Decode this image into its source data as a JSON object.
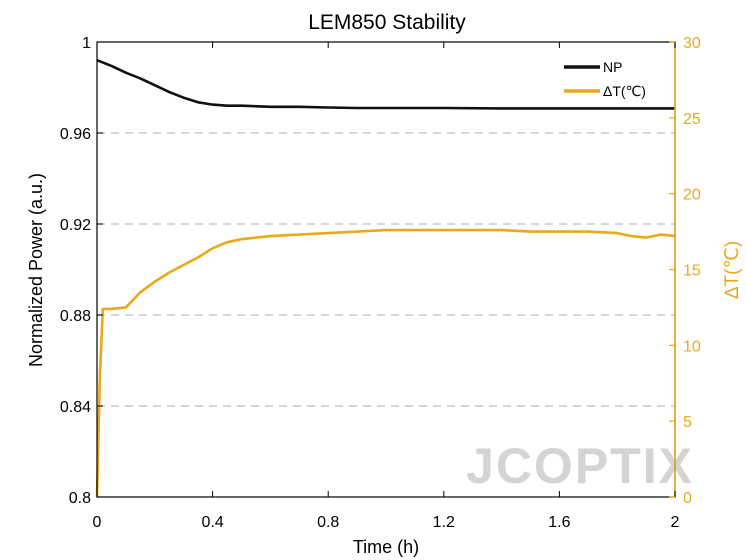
{
  "chart_data": {
    "type": "line",
    "title": "LEM850 Stability",
    "xlabel": "Time (h)",
    "ylabel": "Normalized Power (a.u.)",
    "ylabel_right": "ΔT(℃)",
    "xlim": [
      0,
      2
    ],
    "ylim": [
      0.8,
      1.0
    ],
    "ylim_right": [
      0,
      30
    ],
    "x_ticks": [
      "0",
      "0.4",
      "0.8",
      "1.2",
      "1.6",
      "2"
    ],
    "x_tick_values": [
      0,
      0.4,
      0.8,
      1.2,
      1.6,
      2
    ],
    "y_ticks": [
      "0.8",
      "0.84",
      "0.88",
      "0.92",
      "0.96",
      "1"
    ],
    "y_tick_values": [
      0.8,
      0.84,
      0.88,
      0.92,
      0.96,
      1.0
    ],
    "y_ticks_right": [
      "0",
      "5",
      "10",
      "15",
      "20",
      "25",
      "30"
    ],
    "y_tick_values_right": [
      0,
      5,
      10,
      15,
      20,
      25,
      30
    ],
    "grid": "dashed horizontal at 0.84, 0.88, 0.92, 0.96",
    "legend_position": "top-right",
    "watermark": "JCOPTIX",
    "colors": {
      "np": "#111111",
      "dt": "#e8a91c",
      "grid": "#c8c8c8"
    },
    "series": [
      {
        "name": "NP",
        "axis": "left",
        "x": [
          0,
          0.05,
          0.1,
          0.15,
          0.2,
          0.25,
          0.3,
          0.35,
          0.4,
          0.45,
          0.5,
          0.6,
          0.7,
          0.8,
          0.9,
          1.0,
          1.2,
          1.4,
          1.6,
          1.8,
          2.0
        ],
        "values": [
          0.992,
          0.9895,
          0.9865,
          0.984,
          0.981,
          0.978,
          0.9755,
          0.9735,
          0.9725,
          0.972,
          0.972,
          0.9715,
          0.9715,
          0.9712,
          0.971,
          0.971,
          0.971,
          0.9708,
          0.9708,
          0.9708,
          0.9708
        ]
      },
      {
        "name": "ΔT(℃)",
        "axis": "right",
        "x": [
          0,
          0.01,
          0.02,
          0.03,
          0.05,
          0.1,
          0.15,
          0.2,
          0.25,
          0.3,
          0.35,
          0.4,
          0.45,
          0.5,
          0.6,
          0.7,
          0.8,
          0.9,
          1.0,
          1.1,
          1.2,
          1.3,
          1.4,
          1.5,
          1.6,
          1.7,
          1.8,
          1.85,
          1.9,
          1.95,
          2.0
        ],
        "values": [
          0,
          8,
          12.4,
          12.4,
          12.4,
          12.5,
          13.5,
          14.2,
          14.8,
          15.3,
          15.8,
          16.4,
          16.8,
          17.0,
          17.2,
          17.3,
          17.4,
          17.5,
          17.6,
          17.6,
          17.6,
          17.6,
          17.6,
          17.5,
          17.5,
          17.5,
          17.4,
          17.2,
          17.1,
          17.3,
          17.2
        ]
      }
    ]
  }
}
